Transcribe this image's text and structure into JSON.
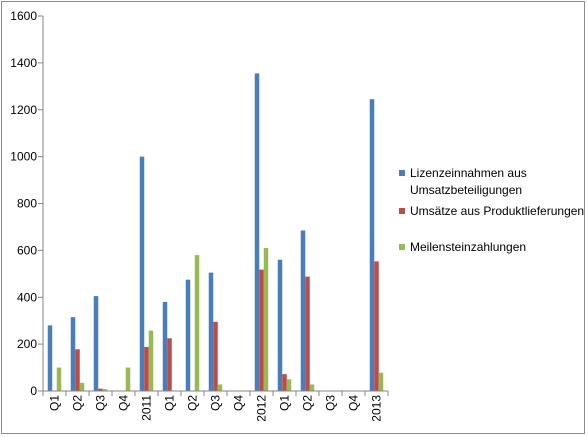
{
  "chart_data": {
    "type": "bar",
    "categories": [
      "Q1",
      "Q2",
      "Q3",
      "Q4",
      "2011",
      "Q1",
      "Q2",
      "Q3",
      "Q4",
      "2012",
      "Q1",
      "Q2",
      "Q3",
      "Q4",
      "2013"
    ],
    "ylim": [
      0,
      1600
    ],
    "yticks": [
      0,
      200,
      400,
      600,
      800,
      1000,
      1200,
      1400,
      1600
    ],
    "grid": false,
    "legend_position": "right",
    "series": [
      {
        "name": "Lizenzeinnahmen aus Umsatzbeteiligungen",
        "legend_lines": [
          "Lizenzeinnahmen aus",
          "Umsatzbeteiligungen"
        ],
        "color": "#4a7ebb",
        "values": [
          280,
          315,
          405,
          0,
          1000,
          380,
          475,
          505,
          0,
          1355,
          560,
          685,
          0,
          0,
          1245
        ]
      },
      {
        "name": "Umsätze aus Produktlieferungen",
        "legend_lines": [
          "Umsätze aus Produktlieferungen"
        ],
        "color": "#be4b48",
        "values": [
          0,
          178,
          10,
          0,
          188,
          225,
          0,
          295,
          0,
          518,
          72,
          488,
          0,
          0,
          553
        ]
      },
      {
        "name": "Meilensteinzahlungen",
        "legend_lines": [
          "Meilensteinzahlungen"
        ],
        "color": "#98b954",
        "values": [
          100,
          35,
          8,
          100,
          258,
          0,
          580,
          28,
          0,
          610,
          50,
          28,
          0,
          0,
          78
        ]
      }
    ]
  }
}
